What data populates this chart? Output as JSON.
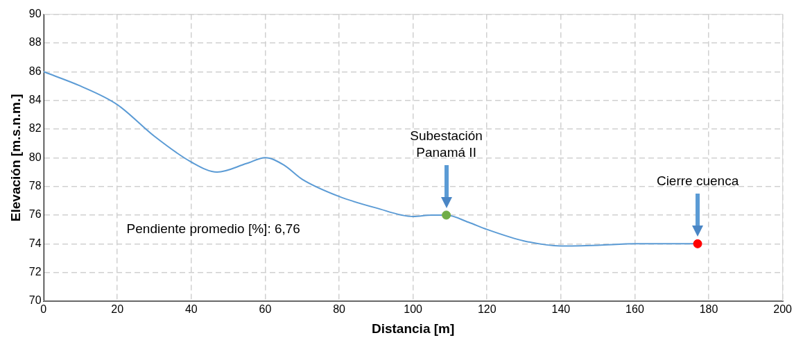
{
  "chart_data": {
    "type": "line",
    "xlabel": "Distancia [m]",
    "ylabel": "Elevación [m.s.n.m.]",
    "xlim": [
      0,
      200
    ],
    "xticks": [
      0,
      20,
      40,
      60,
      80,
      100,
      120,
      140,
      160,
      180,
      200
    ],
    "ylim": [
      70,
      90
    ],
    "yticks": [
      70,
      72,
      74,
      76,
      78,
      80,
      82,
      84,
      86,
      88,
      90
    ],
    "grid": true,
    "marker": "none",
    "line_style": "solid",
    "series": [
      {
        "color": "#5b9bd5",
        "x": [
          0,
          10,
          20,
          30,
          40,
          47,
          55,
          60,
          65,
          70,
          80,
          90,
          100,
          105,
          109,
          115,
          120,
          130,
          140,
          150,
          160,
          170,
          177
        ],
        "values": [
          86,
          85,
          83.7,
          81.5,
          79.7,
          79,
          79.6,
          80,
          79.5,
          78.5,
          77.3,
          76.5,
          75.9,
          76,
          76,
          75.5,
          75,
          74.2,
          73.85,
          73.9,
          74,
          74,
          74
        ]
      },
      {
        "type": "scatter",
        "marker": "circle",
        "x": [
          109,
          177
        ],
        "values": [
          76,
          74
        ],
        "colors": [
          "#70ad47",
          "#ff0000"
        ]
      }
    ],
    "annotations": [
      "Subestación Panamá II",
      "Cierre cuenca",
      "Pendiente promedio [%]: 6,76"
    ]
  }
}
